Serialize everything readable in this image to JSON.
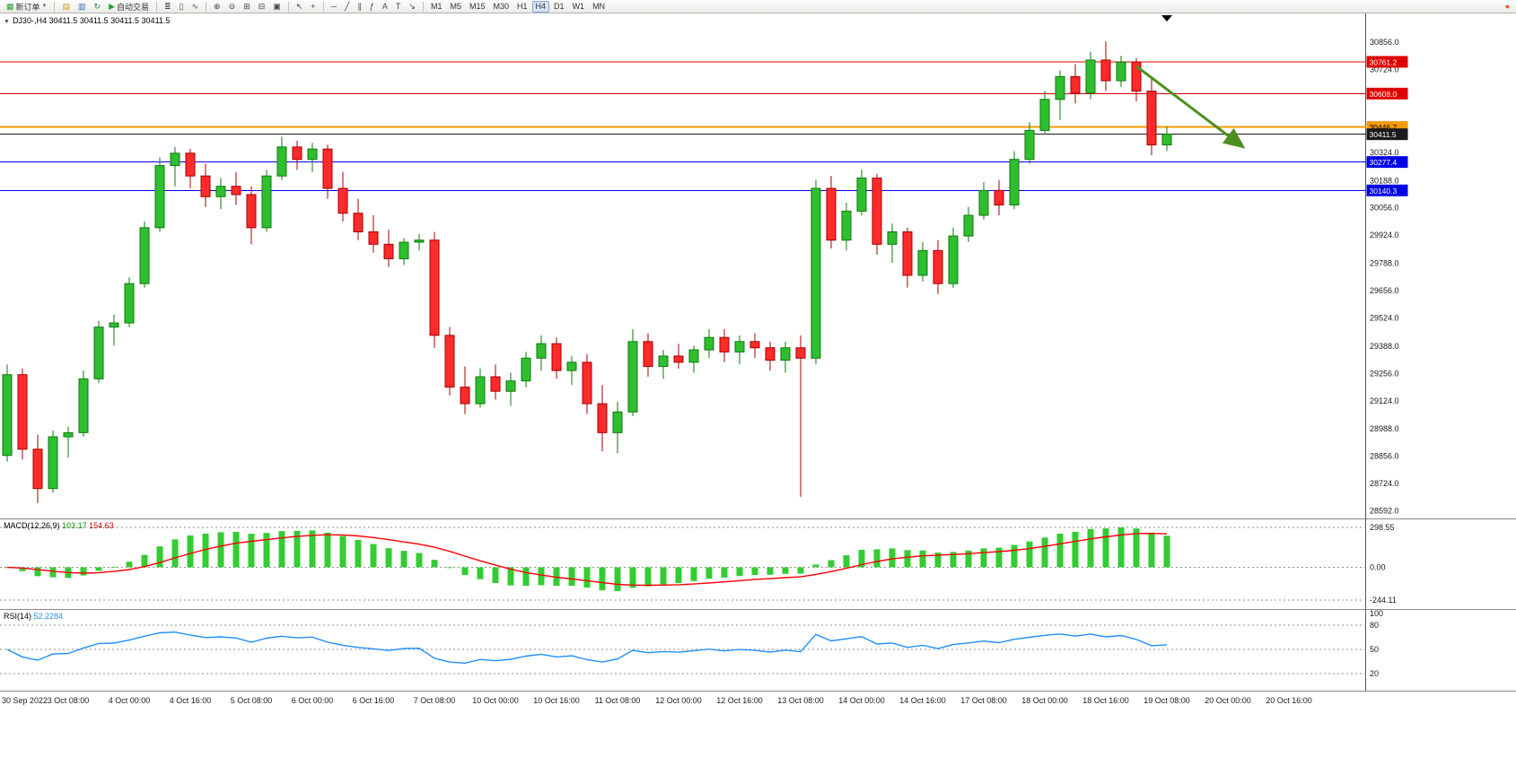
{
  "window": {
    "toolbar": {
      "items": [
        {
          "kind": "button",
          "name": "new-order-button",
          "glyph": "▦",
          "glyph_color": "#2E9E2E",
          "label": "新订单",
          "caret": true
        },
        {
          "kind": "sep"
        },
        {
          "kind": "button",
          "name": "market-watch-button",
          "glyph": "▤",
          "glyph_color": "#C9A227"
        },
        {
          "kind": "button",
          "name": "data-window-button",
          "glyph": "▥",
          "glyph_color": "#3A6FB5"
        },
        {
          "kind": "button",
          "name": "refresh-button",
          "glyph": "↻",
          "glyph_color": "#2E8B57"
        },
        {
          "kind": "button",
          "name": "autotrade-button",
          "glyph": "▶",
          "glyph_color": "#2E9E2E",
          "label": "自动交易"
        },
        {
          "kind": "sep"
        },
        {
          "kind": "button",
          "name": "bars-chart-button",
          "glyph": "≣",
          "glyph_color": "#444444"
        },
        {
          "kind": "button",
          "name": "candles-chart-button",
          "glyph": "▯",
          "glyph_color": "#444444"
        },
        {
          "kind": "button",
          "name": "line-chart-button",
          "glyph": "∿",
          "glyph_color": "#444444"
        },
        {
          "kind": "sep"
        },
        {
          "kind": "button",
          "name": "zoom-in-button",
          "glyph": "⊕",
          "glyph_color": "#444444"
        },
        {
          "kind": "button",
          "name": "zoom-out-button",
          "glyph": "⊖",
          "glyph_color": "#444444"
        },
        {
          "kind": "button",
          "name": "tile-windows-button",
          "glyph": "⊞",
          "glyph_color": "#444444"
        },
        {
          "kind": "button",
          "name": "cascade-windows-button",
          "glyph": "⊟",
          "glyph_color": "#444444"
        },
        {
          "kind": "button",
          "name": "arrange-button",
          "glyph": "▣",
          "glyph_color": "#444444"
        },
        {
          "kind": "sep"
        },
        {
          "kind": "button",
          "name": "cursor-button",
          "glyph": "↖",
          "glyph_color": "#444444"
        },
        {
          "kind": "button",
          "name": "crosshair-button",
          "glyph": "+",
          "glyph_color": "#444444"
        },
        {
          "kind": "sep"
        },
        {
          "kind": "button",
          "name": "horizontal-line-button",
          "glyph": "─",
          "glyph_color": "#444444"
        },
        {
          "kind": "button",
          "name": "trendline-button",
          "glyph": "╱",
          "glyph_color": "#444444"
        },
        {
          "kind": "button",
          "name": "channel-button",
          "glyph": "∥",
          "glyph_color": "#444444"
        },
        {
          "kind": "button",
          "name": "fibonacci-button",
          "glyph": "ƒ",
          "glyph_color": "#444444"
        },
        {
          "kind": "button",
          "name": "text-button",
          "glyph": "A",
          "glyph_color": "#444444"
        },
        {
          "kind": "button",
          "name": "label-button",
          "glyph": "T",
          "glyph_color": "#444444"
        },
        {
          "kind": "button",
          "name": "arrow-tool-button",
          "glyph": "↘",
          "glyph_color": "#444444"
        },
        {
          "kind": "sep"
        },
        {
          "kind": "timeframes"
        },
        {
          "kind": "spacer"
        },
        {
          "kind": "button",
          "name": "alert-button",
          "glyph": "●",
          "glyph_color": "#FF5A1F"
        }
      ],
      "timeframes": [
        "M1",
        "M5",
        "M15",
        "M30",
        "H1",
        "H4",
        "D1",
        "W1",
        "MN"
      ],
      "active_timeframe": "H4"
    }
  },
  "chart": {
    "title": "DJ30-,H4 30411.5 30411.5 30411.5 30411.5",
    "symbol_period": "DJ30-,H4",
    "current_ohlc": [
      "30411.5",
      "30411.5",
      "30411.5",
      "30411.5"
    ]
  },
  "indicators": {
    "macd": {
      "title": "MACD(12,26,9)",
      "main_value": "103.17",
      "signal_value": "154.63"
    },
    "rsi": {
      "title": "RSI(14)",
      "value": "52.2284"
    }
  },
  "chart_data": [
    {
      "type": "candlestick",
      "symbol": "DJ30-",
      "timeframe": "H4",
      "current_price": "30411.5",
      "ylim": [
        28560,
        30995
      ],
      "candle_up_color": "#2FBE2F",
      "candle_down_color": "#FF2A2A",
      "x_labels": [
        "30 Sep 2022",
        "3 Oct 08:00",
        "4 Oct 00:00",
        "4 Oct 16:00",
        "5 Oct 08:00",
        "6 Oct 00:00",
        "6 Oct 16:00",
        "7 Oct 08:00",
        "10 Oct 00:00",
        "10 Oct 16:00",
        "11 Oct 08:00",
        "12 Oct 00:00",
        "12 Oct 16:00",
        "13 Oct 08:00",
        "14 Oct 00:00",
        "14 Oct 16:00",
        "17 Oct 08:00",
        "18 Oct 00:00",
        "18 Oct 16:00",
        "19 Oct 08:00",
        "20 Oct 00:00",
        "20 Oct 16:00"
      ],
      "y_ticks": [
        "30856.0",
        "30724.0",
        "30324.0",
        "30188.0",
        "30056.0",
        "29924.0",
        "29788.0",
        "29656.0",
        "29524.0",
        "29388.0",
        "29256.0",
        "29124.0",
        "28988.0",
        "28856.0",
        "28724.0",
        "28592.0"
      ],
      "horizontal_lines": [
        {
          "price": 30761.2,
          "color": "#E00000",
          "width": 1,
          "tag": "30761.2",
          "tag_fg": "#ffffff"
        },
        {
          "price": 30608.0,
          "color": "#E00000",
          "width": 1,
          "tag": "30608.0",
          "tag_fg": "#ffffff"
        },
        {
          "price": 30446.7,
          "color": "#F59A00",
          "width": 2,
          "tag": "30446.7",
          "tag_fg": "#000000"
        },
        {
          "price": 30411.5,
          "color": "#1A1A1A",
          "width": 1,
          "tag": "30411.5",
          "tag_fg": "#ffffff"
        },
        {
          "price": 30277.4,
          "color": "#0000E8",
          "width": 1,
          "tag": "30277.4",
          "tag_fg": "#ffffff"
        },
        {
          "price": 30140.3,
          "color": "#0000E8",
          "width": 1,
          "tag": "30140.3",
          "tag_fg": "#ffffff"
        }
      ],
      "arrow_annotation": {
        "from_bar": 74,
        "from_price": 30740,
        "to_bar": 81,
        "to_price": 30350,
        "color": "#4E8F1F"
      },
      "candles": [
        [
          28860,
          29300,
          28830,
          29250
        ],
        [
          29250,
          29280,
          28840,
          28890
        ],
        [
          28890,
          28960,
          28630,
          28700
        ],
        [
          28700,
          28980,
          28680,
          28950
        ],
        [
          28950,
          29000,
          28850,
          28970
        ],
        [
          28970,
          29270,
          28950,
          29230
        ],
        [
          29230,
          29510,
          29210,
          29480
        ],
        [
          29480,
          29540,
          29390,
          29500
        ],
        [
          29500,
          29720,
          29480,
          29690
        ],
        [
          29690,
          29990,
          29670,
          29960
        ],
        [
          29960,
          30300,
          29940,
          30260
        ],
        [
          30260,
          30350,
          30160,
          30320
        ],
        [
          30320,
          30340,
          30150,
          30210
        ],
        [
          30210,
          30270,
          30060,
          30110
        ],
        [
          30110,
          30200,
          30050,
          30160
        ],
        [
          30160,
          30230,
          30070,
          30120
        ],
        [
          30120,
          30160,
          29880,
          29960
        ],
        [
          29960,
          30240,
          29940,
          30210
        ],
        [
          30210,
          30400,
          30190,
          30350
        ],
        [
          30350,
          30380,
          30240,
          30290
        ],
        [
          30290,
          30370,
          30230,
          30340
        ],
        [
          30340,
          30360,
          30100,
          30150
        ],
        [
          30150,
          30230,
          29990,
          30030
        ],
        [
          30030,
          30100,
          29900,
          29940
        ],
        [
          29940,
          30020,
          29840,
          29880
        ],
        [
          29880,
          29950,
          29770,
          29810
        ],
        [
          29810,
          29910,
          29780,
          29890
        ],
        [
          29890,
          29930,
          29850,
          29900
        ],
        [
          29900,
          29940,
          29380,
          29440
        ],
        [
          29440,
          29480,
          29150,
          29190
        ],
        [
          29190,
          29290,
          29060,
          29110
        ],
        [
          29110,
          29280,
          29090,
          29240
        ],
        [
          29240,
          29300,
          29130,
          29170
        ],
        [
          29170,
          29260,
          29100,
          29220
        ],
        [
          29220,
          29360,
          29190,
          29330
        ],
        [
          29330,
          29440,
          29270,
          29400
        ],
        [
          29400,
          29430,
          29230,
          29270
        ],
        [
          29270,
          29340,
          29200,
          29310
        ],
        [
          29310,
          29350,
          29060,
          29110
        ],
        [
          29110,
          29200,
          28880,
          28970
        ],
        [
          28970,
          29120,
          28870,
          29070
        ],
        [
          29070,
          29470,
          29050,
          29410
        ],
        [
          29410,
          29450,
          29240,
          29290
        ],
        [
          29290,
          29370,
          29230,
          29340
        ],
        [
          29340,
          29400,
          29280,
          29310
        ],
        [
          29310,
          29390,
          29260,
          29370
        ],
        [
          29370,
          29470,
          29330,
          29430
        ],
        [
          29430,
          29470,
          29310,
          29360
        ],
        [
          29360,
          29440,
          29300,
          29410
        ],
        [
          29410,
          29450,
          29330,
          29380
        ],
        [
          29380,
          29410,
          29270,
          29320
        ],
        [
          29320,
          29410,
          29260,
          29380
        ],
        [
          29380,
          29440,
          28660,
          29330
        ],
        [
          29330,
          30190,
          29300,
          30150
        ],
        [
          30150,
          30210,
          29860,
          29900
        ],
        [
          29900,
          30080,
          29850,
          30040
        ],
        [
          30040,
          30240,
          30020,
          30200
        ],
        [
          30200,
          30220,
          29830,
          29880
        ],
        [
          29880,
          29980,
          29790,
          29940
        ],
        [
          29940,
          29960,
          29670,
          29730
        ],
        [
          29730,
          29890,
          29700,
          29850
        ],
        [
          29850,
          29900,
          29640,
          29690
        ],
        [
          29690,
          29960,
          29670,
          29920
        ],
        [
          29920,
          30060,
          29890,
          30020
        ],
        [
          30020,
          30180,
          30000,
          30140
        ],
        [
          30140,
          30190,
          30020,
          30070
        ],
        [
          30070,
          30330,
          30050,
          30290
        ],
        [
          30290,
          30470,
          30270,
          30430
        ],
        [
          30430,
          30620,
          30410,
          30580
        ],
        [
          30580,
          30720,
          30480,
          30690
        ],
        [
          30690,
          30750,
          30560,
          30610
        ],
        [
          30610,
          30810,
          30580,
          30770
        ],
        [
          30770,
          30860,
          30620,
          30670
        ],
        [
          30670,
          30790,
          30640,
          30760
        ],
        [
          30760,
          30780,
          30570,
          30620
        ],
        [
          30620,
          30680,
          30310,
          30360
        ],
        [
          30360,
          30450,
          30330,
          30411.5
        ]
      ]
    },
    {
      "type": "bar",
      "title": "MACD(12,26,9)",
      "params": [
        12,
        26,
        9
      ],
      "main_value": 103.17,
      "signal_value": 154.63,
      "levels": [
        298.55,
        0,
        -244.11
      ],
      "y_ticks": [
        "298.55",
        "0.00",
        "-244.11"
      ],
      "histogram_color": "#33CC33",
      "signal_color": "#FF0000"
    },
    {
      "type": "line",
      "title": "RSI(14)",
      "params": [
        14
      ],
      "value": 52.2284,
      "levels": [
        80,
        50,
        20
      ],
      "y_ticks": [
        "100",
        "80",
        "50",
        "20"
      ],
      "line_color": "#1E90FF"
    }
  ]
}
